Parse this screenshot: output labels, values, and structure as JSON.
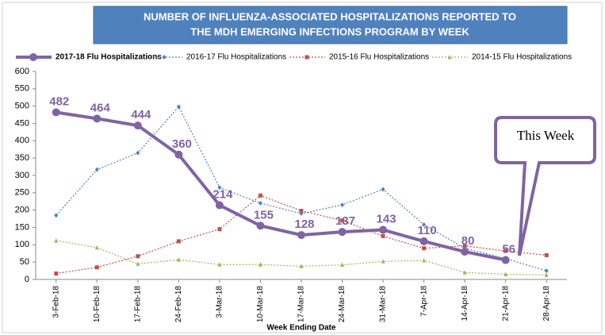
{
  "chart_data": {
    "type": "line",
    "title": [
      "NUMBER OF INFLUENZA-ASSOCIATED HOSPITALIZATIONS REPORTED TO",
      "THE MDH EMERGING INFECTIONS PROGRAM BY WEEK"
    ],
    "x_label": "Week Ending Date",
    "annotation": "This Week",
    "categories": [
      "3-Feb-18",
      "10-Feb-18",
      "17-Feb-18",
      "24-Feb-18",
      "3-Mar-18",
      "10-Mar-18",
      "17-Mar-18",
      "24-Mar-18",
      "31-Mar-18",
      "7-Apr-18",
      "14-Apr-18",
      "21-Apr-18",
      "28-Apr-18"
    ],
    "series": [
      {
        "name": "2017-18 Flu Hospitalizations",
        "color": "#8064a2",
        "marker": "circle",
        "style": "solid",
        "data_labels": true,
        "values": [
          482,
          464,
          444,
          360,
          214,
          155,
          128,
          137,
          143,
          110,
          80,
          56,
          null
        ]
      },
      {
        "name": "2016-17 Flu Hospitalizations",
        "color": "#4f81bd",
        "marker": "diamond",
        "style": "dotted",
        "values": [
          185,
          317,
          365,
          498,
          265,
          220,
          190,
          215,
          260,
          158,
          90,
          60,
          25
        ]
      },
      {
        "name": "2015-16 Flu Hospitalizations",
        "color": "#c0504d",
        "marker": "square",
        "style": "dotted",
        "values": [
          17,
          35,
          67,
          110,
          145,
          242,
          198,
          170,
          125,
          90,
          97,
          82,
          70
        ]
      },
      {
        "name": "2014-15 Flu Hospitalizations",
        "color": "#9bbb59",
        "marker": "triangle",
        "style": "dotted",
        "values": [
          112,
          92,
          45,
          57,
          43,
          43,
          38,
          42,
          52,
          55,
          20,
          15,
          13
        ]
      }
    ],
    "ylim": [
      0,
      600
    ],
    "yticks": [
      0,
      50,
      100,
      150,
      200,
      250,
      300,
      350,
      400,
      450,
      500,
      550,
      600
    ],
    "grid": false,
    "legend": "top"
  }
}
